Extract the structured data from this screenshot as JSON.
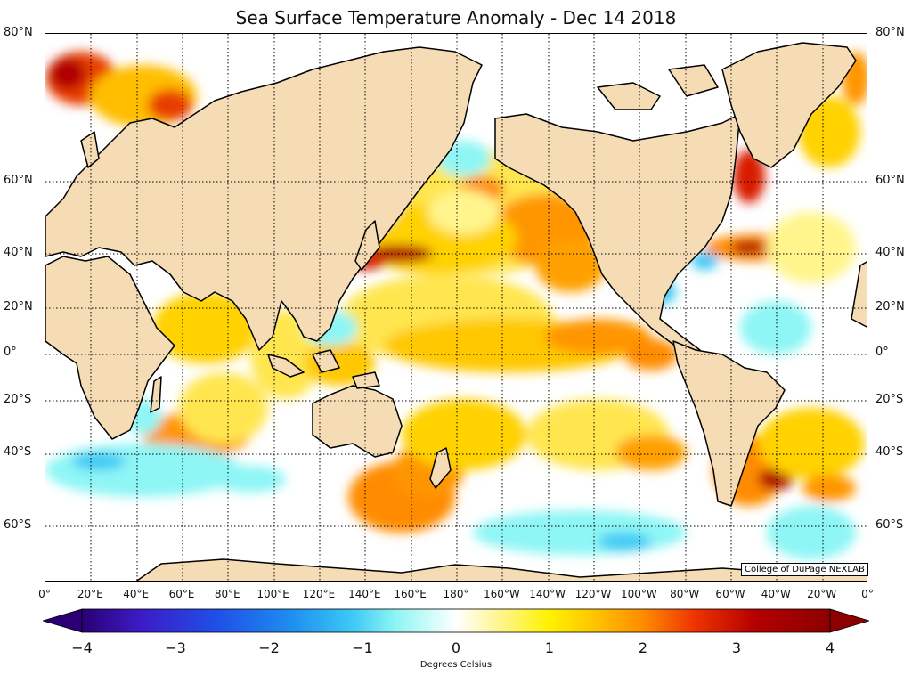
{
  "title": "Sea Surface Temperature Anomaly - Dec 14 2018",
  "credit": "College of DuPage NEXLAB",
  "lat_labels": [
    "80°N",
    "60°N",
    "40°N",
    "20°N",
    "0°",
    "20°S",
    "40°S",
    "60°S"
  ],
  "lon_labels": [
    "0°",
    "20°E",
    "40°E",
    "60°E",
    "80°E",
    "100°E",
    "120°E",
    "140°E",
    "160°E",
    "180°",
    "160°W",
    "140°W",
    "120°W",
    "100°W",
    "80°W",
    "60°W",
    "40°W",
    "20°W",
    "0°"
  ],
  "colorbar": {
    "min": -4,
    "max": 4,
    "ticks": [
      "−4",
      "−3",
      "−2",
      "−1",
      "0",
      "1",
      "2",
      "3",
      "4"
    ],
    "label": "Degrees Celsius",
    "colors": [
      "#2a0074",
      "#3c1cc8",
      "#1f4fe8",
      "#1e8ef0",
      "#3cc8f5",
      "#8ef6f5",
      "#ffffff",
      "#fff58c",
      "#fff200",
      "#ffc800",
      "#ff8c00",
      "#ee3200",
      "#b40000",
      "#8c0000"
    ]
  },
  "colors": {
    "land": "#f5dcb4",
    "coast": "#000000",
    "grid": "#000000"
  }
}
